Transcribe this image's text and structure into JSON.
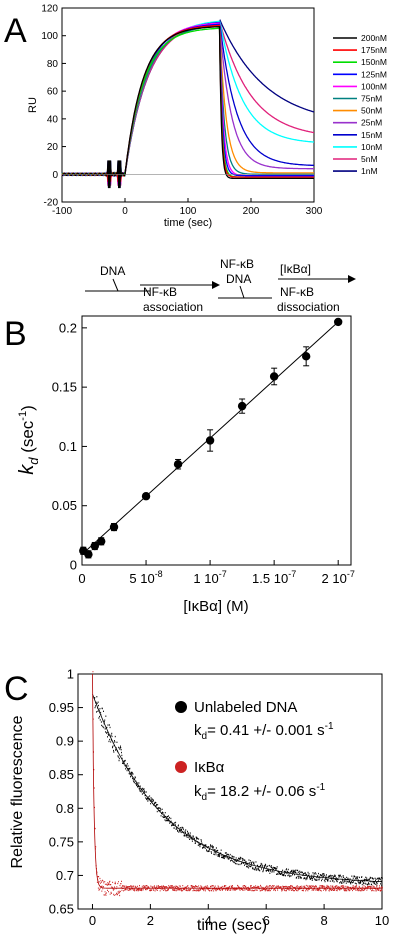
{
  "panel_labels": [
    "A",
    "B",
    "C"
  ],
  "schematic": {
    "dna": "DNA",
    "nfkb1": "NF-κB",
    "association": "association",
    "nfkb2": "NF-κB",
    "dna2": "DNA",
    "ikba": "[IκBα]",
    "nfkb3": "NF-κB",
    "dissociation": "dissociation"
  },
  "chart_data": [
    {
      "id": "A",
      "type": "line",
      "title": "",
      "xlabel": "time (sec)",
      "ylabel": "RU",
      "xlim": [
        -100,
        300
      ],
      "ylim": [
        -20,
        120
      ],
      "xticks": [
        "-100",
        "0",
        "100",
        "200",
        "300"
      ],
      "yticks": [
        "-20",
        "0",
        "20",
        "40",
        "60",
        "80",
        "100",
        "120"
      ],
      "legend_position": "right",
      "injection_start_sec": 0,
      "dissociation_start_sec": 150,
      "series": [
        {
          "name": "200nM",
          "color": "#000000",
          "plateau_RU": 107,
          "end_RU": -3
        },
        {
          "name": "175nM",
          "color": "#ff0000",
          "plateau_RU": 108,
          "end_RU": -2
        },
        {
          "name": "150nM",
          "color": "#00dd00",
          "plateau_RU": 106,
          "end_RU": -2
        },
        {
          "name": "125nM",
          "color": "#0000ff",
          "plateau_RU": 109,
          "end_RU": -1
        },
        {
          "name": "100nM",
          "color": "#ff00ff",
          "plateau_RU": 110,
          "end_RU": -1
        },
        {
          "name": "75nM",
          "color": "#008080",
          "plateau_RU": 108,
          "end_RU": 0
        },
        {
          "name": "50nM",
          "color": "#ff8c00",
          "plateau_RU": 109,
          "end_RU": 1
        },
        {
          "name": "25nM",
          "color": "#9932cc",
          "plateau_RU": 110,
          "end_RU": 4
        },
        {
          "name": "15nM",
          "color": "#0000cd",
          "plateau_RU": 111,
          "end_RU": 6
        },
        {
          "name": "10nM",
          "color": "#00ffff",
          "plateau_RU": 112,
          "end_RU": 22
        },
        {
          "name": "5nM",
          "color": "#e0207a",
          "plateau_RU": 111,
          "end_RU": 26
        },
        {
          "name": "1nM",
          "color": "#000080",
          "plateau_RU": 112,
          "end_RU": 35
        }
      ]
    },
    {
      "id": "B",
      "type": "scatter",
      "title": "",
      "xlabel": "[IκBα] (M)",
      "ylabel": "k_d (sec^-1)",
      "ylabel_main": "k",
      "ylabel_sub": "d",
      "ylabel_unit": " (sec",
      "ylabel_sup": "-1",
      "ylabel_close": ")",
      "xlim": [
        0,
        2.1e-07
      ],
      "ylim": [
        0,
        0.21
      ],
      "xticks": [
        {
          "value": 0,
          "label": "0"
        },
        {
          "value": 5e-08,
          "label": "5 10",
          "sup": "-8"
        },
        {
          "value": 1e-07,
          "label": "1 10",
          "sup": "-7"
        },
        {
          "value": 1.5e-07,
          "label": "1.5 10",
          "sup": "-7"
        },
        {
          "value": 2e-07,
          "label": "2 10",
          "sup": "-7"
        }
      ],
      "yticks": [
        {
          "value": 0,
          "label": "0"
        },
        {
          "value": 0.05,
          "label": "0.05"
        },
        {
          "value": 0.1,
          "label": "0.1"
        },
        {
          "value": 0.15,
          "label": "0.15"
        },
        {
          "value": 0.2,
          "label": "0.2"
        }
      ],
      "points": [
        {
          "x": 1e-09,
          "y": 0.012,
          "err": 0.003
        },
        {
          "x": 5e-09,
          "y": 0.009,
          "err": 0.003
        },
        {
          "x": 1e-08,
          "y": 0.016,
          "err": 0.003
        },
        {
          "x": 1.5e-08,
          "y": 0.02,
          "err": 0.003
        },
        {
          "x": 2.5e-08,
          "y": 0.032,
          "err": 0.003
        },
        {
          "x": 5e-08,
          "y": 0.058,
          "err": 0.002
        },
        {
          "x": 7.5e-08,
          "y": 0.085,
          "err": 0.004
        },
        {
          "x": 1e-07,
          "y": 0.105,
          "err": 0.009
        },
        {
          "x": 1.25e-07,
          "y": 0.134,
          "err": 0.006
        },
        {
          "x": 1.5e-07,
          "y": 0.159,
          "err": 0.007
        },
        {
          "x": 1.75e-07,
          "y": 0.176,
          "err": 0.008
        },
        {
          "x": 2e-07,
          "y": 0.205,
          "err": 0.002
        }
      ],
      "fit_line": {
        "x": [
          0,
          2e-07
        ],
        "y": [
          0.009,
          0.205
        ]
      }
    },
    {
      "id": "C",
      "type": "scatter",
      "title": "",
      "xlabel": "time (sec)",
      "ylabel": "Relative fluorescence",
      "xlim": [
        -0.5,
        10
      ],
      "ylim": [
        0.65,
        1.0
      ],
      "xticks": [
        "0",
        "2",
        "4",
        "6",
        "8",
        "10"
      ],
      "yticks": [
        "0.65",
        "0.7",
        "0.75",
        "0.8",
        "0.85",
        "0.9",
        "0.95",
        "1"
      ],
      "legend_position": "top-right",
      "series": [
        {
          "name": "Unlabeled DNA",
          "color": "#000000",
          "annotation_prefix": "k",
          "annotation_sub": "d",
          "annotation_value": "= 0.41 +/- 0.001 s",
          "annotation_sup": "-1",
          "k_d": 0.41,
          "start": 0.97,
          "plateau": 0.686
        },
        {
          "name": "IκBα",
          "color": "#cc2222",
          "annotation_prefix": "k",
          "annotation_sub": "d",
          "annotation_value": "= 18.2 +/- 0.06  s",
          "annotation_sup": "-1",
          "k_d": 18.2,
          "start": 1.0,
          "plateau": 0.681
        }
      ]
    }
  ]
}
